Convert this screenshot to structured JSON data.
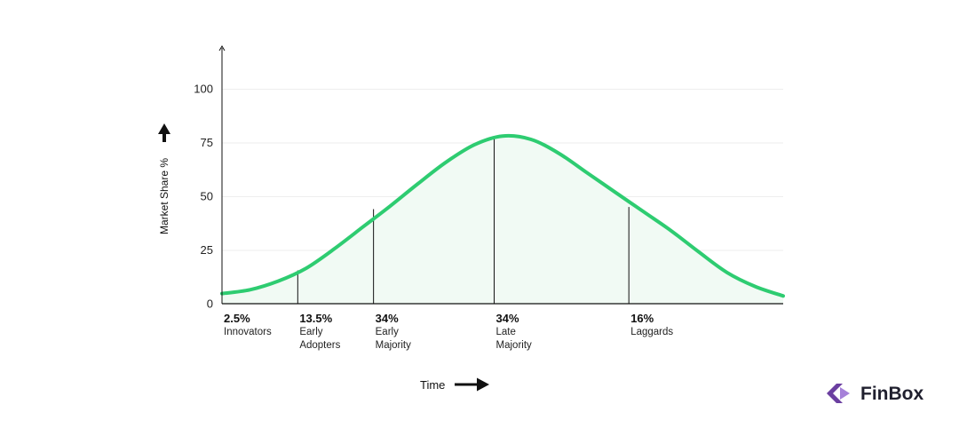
{
  "chart_data": {
    "type": "area",
    "xlabel": "Time",
    "ylabel": "Market Share %",
    "ylim": [
      0,
      100
    ],
    "yticks": [
      0,
      25,
      50,
      75,
      100
    ],
    "grid": true,
    "x": [
      0,
      5,
      10,
      15,
      20,
      25,
      30,
      35,
      40,
      45,
      50,
      55,
      60,
      65,
      70,
      75,
      80,
      85,
      90,
      95,
      100
    ],
    "values": [
      4.7,
      6.5,
      10.5,
      16.5,
      25.5,
      35.5,
      45.5,
      56,
      66,
      74,
      78,
      76.5,
      70,
      61,
      52,
      43,
      34,
      24,
      14.5,
      8,
      3.6
    ],
    "segments": [
      {
        "x": 0,
        "divider_y": null,
        "percent": "2.5%",
        "name_lines": [
          "Innovators"
        ]
      },
      {
        "x": 13.5,
        "divider_y": 15.5,
        "percent": "13.5%",
        "name_lines": [
          "Early",
          "Adopters"
        ]
      },
      {
        "x": 27,
        "divider_y": 44,
        "percent": "34%",
        "name_lines": [
          "Early",
          "Majority"
        ]
      },
      {
        "x": 48.5,
        "divider_y": 78,
        "percent": "34%",
        "name_lines": [
          "Late",
          "Majority"
        ]
      },
      {
        "x": 72.5,
        "divider_y": 45,
        "percent": "16%",
        "name_lines": [
          "Laggards"
        ]
      }
    ],
    "colors": {
      "curve": "#2ecc71",
      "fill": "#f1faf4",
      "grid": "#eeeeee",
      "axis": "#111111",
      "divider": "#111111"
    }
  },
  "logo": {
    "text": "FinBox",
    "colors": {
      "dark": "#6b3fa0",
      "light": "#a681d9",
      "text": "#1f1f2e"
    }
  }
}
